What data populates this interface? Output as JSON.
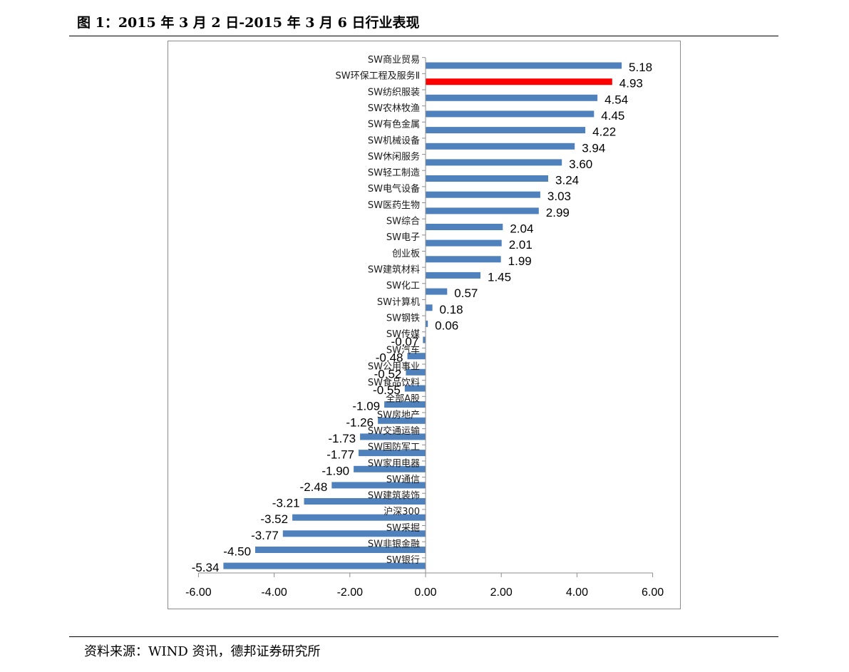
{
  "header": {
    "title": "图 1：2015 年 3 月 2 日-2015 年 3 月 6 日行业表现"
  },
  "footer": {
    "source": "资料来源：WIND 资讯，德邦证券研究所"
  },
  "colors": {
    "bar": "#4f81bd",
    "highlight": "#ff0000",
    "axis": "#8c8c8c"
  },
  "chart_data": {
    "type": "bar",
    "orientation": "horizontal",
    "title": "",
    "xlabel": "",
    "ylabel": "",
    "xlim": [
      -6,
      6
    ],
    "x_ticks": [
      "-6.00",
      "-4.00",
      "-2.00",
      "0.00",
      "2.00",
      "4.00",
      "6.00"
    ],
    "grid": false,
    "legend": "none",
    "highlight_category": "SW环保工程及服务Ⅱ",
    "categories": [
      "SW商业贸易",
      "SW环保工程及服务Ⅱ",
      "SW纺织服装",
      "SW农林牧渔",
      "SW有色金属",
      "SW机械设备",
      "SW休闲服务",
      "SW轻工制造",
      "SW电气设备",
      "SW医药生物",
      "SW综合",
      "SW电子",
      "创业板",
      "SW建筑材料",
      "SW化工",
      "SW计算机",
      "SW钢铁",
      "SW传媒",
      "SW汽车",
      "SW公用事业",
      "SW食品饮料",
      "全部A股",
      "SW房地产",
      "SW交通运输",
      "SW国防军工",
      "SW家用电器",
      "SW通信",
      "SW建筑装饰",
      "沪深300",
      "SW采掘",
      "SW非银金融",
      "SW银行"
    ],
    "values": [
      5.18,
      4.93,
      4.54,
      4.45,
      4.22,
      3.94,
      3.6,
      3.24,
      3.03,
      2.99,
      2.04,
      2.01,
      1.99,
      1.45,
      0.57,
      0.18,
      0.06,
      -0.07,
      -0.48,
      -0.52,
      -0.55,
      -1.09,
      -1.26,
      -1.73,
      -1.77,
      -1.9,
      -2.48,
      -3.21,
      -3.52,
      -3.77,
      -4.5,
      -5.34
    ],
    "value_labels": [
      "5.18",
      "4.93",
      "4.54",
      "4.45",
      "4.22",
      "3.94",
      "3.60",
      "3.24",
      "3.03",
      "2.99",
      "2.04",
      "2.01",
      "1.99",
      "1.45",
      "0.57",
      "0.18",
      "0.06",
      "-0.07",
      "-0.48",
      "-0.52",
      "-0.55",
      "-1.09",
      "-1.26",
      "-1.73",
      "-1.77",
      "-1.90",
      "-2.48",
      "-3.21",
      "-3.52",
      "-3.77",
      "-4.50",
      "-5.34"
    ]
  }
}
